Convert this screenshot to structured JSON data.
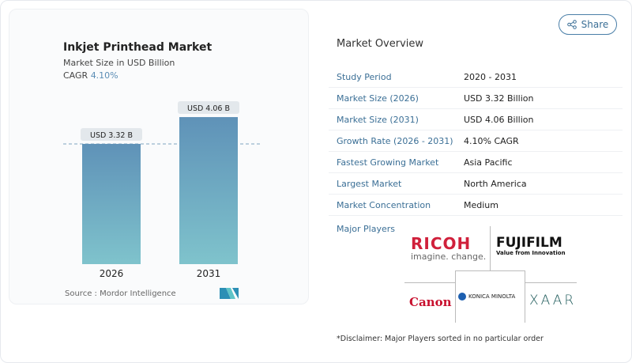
{
  "header": {
    "share_label": "Share",
    "share_icon": "share-icon"
  },
  "chart_panel": {
    "title": "Inkjet Printhead Market",
    "subtitle": "Market Size in USD Billion",
    "cagr_label": "CAGR",
    "cagr_value": "4.10%",
    "source": "Source :  Mordor Intelligence"
  },
  "chart_data": {
    "type": "bar",
    "title": "Inkjet Printhead Market",
    "ylabel": "Market Size in USD Billion",
    "categories": [
      "2026",
      "2031"
    ],
    "values": [
      3.32,
      4.06
    ],
    "data_labels": [
      "USD 3.32 B",
      "USD 4.06 B"
    ],
    "reference_line": 3.32,
    "grid": false,
    "colors": {
      "bar_top": "#5f92b8",
      "bar_bottom": "#7fc3cc"
    }
  },
  "overview": {
    "title": "Market Overview",
    "rows": [
      {
        "label": "Study Period",
        "value": "2020 - 2031"
      },
      {
        "label": "Market Size (2026)",
        "value": "USD 3.32 Billion"
      },
      {
        "label": "Market Size (2031)",
        "value": "USD 4.06 Billion"
      },
      {
        "label": "Growth Rate (2026 - 2031)",
        "value": "4.10% CAGR"
      },
      {
        "label": "Fastest Growing Market",
        "value": "Asia Pacific"
      },
      {
        "label": "Largest Market",
        "value": "North America"
      },
      {
        "label": "Market Concentration",
        "value": "Medium"
      }
    ],
    "major_players_label": "Major Players",
    "players": [
      "RICOH",
      "FUJIFILM",
      "Canon",
      "KONICA MINOLTA",
      "XAAR"
    ],
    "ricoh_tagline": "imagine. change.",
    "fujifilm_tagline": "Value from Innovation",
    "disclaimer": "*Disclaimer: Major Players sorted in no particular order"
  }
}
